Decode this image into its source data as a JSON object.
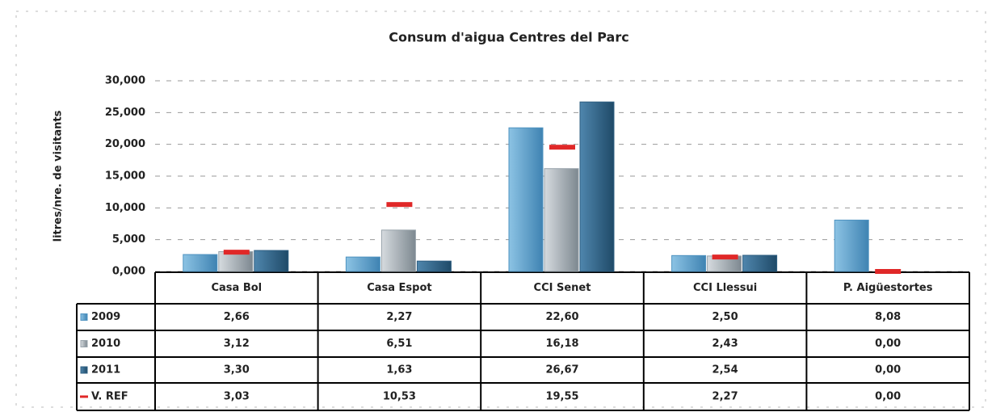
{
  "chart_data": {
    "type": "bar",
    "title": "Consum d'aigua Centres del Parc",
    "y_label": "litres/nre. de visitants",
    "categories": [
      "Casa Bol",
      "Casa Espot",
      "CCI Senet",
      "CCI Llessui",
      "P. Aigüestortes"
    ],
    "series": [
      {
        "name": "2009",
        "color": "#4f93c0",
        "type": "bar",
        "values": [
          2.66,
          2.27,
          22.6,
          2.5,
          8.08
        ],
        "value_labels": [
          "2,66",
          "2,27",
          "22,60",
          "2,50",
          "8,08"
        ]
      },
      {
        "name": "2010",
        "color": "#98a3ab",
        "type": "bar",
        "values": [
          3.12,
          6.51,
          16.18,
          2.43,
          0
        ],
        "value_labels": [
          "3,12",
          "6,51",
          "16,18",
          "2,43",
          "0,00"
        ]
      },
      {
        "name": "2011",
        "color": "#2f5f82",
        "type": "bar",
        "values": [
          3.3,
          1.63,
          26.67,
          2.54,
          0
        ],
        "value_labels": [
          "3,30",
          "1,63",
          "26,67",
          "2,54",
          "0,00"
        ]
      },
      {
        "name": "V. REF",
        "color": "#e02828",
        "type": "line",
        "values": [
          3.03,
          10.53,
          19.55,
          2.27,
          0
        ],
        "value_labels": [
          "3,03",
          "10,53",
          "19,55",
          "2,27",
          "0,00"
        ]
      }
    ],
    "ylim": [
      0,
      30
    ],
    "yticks": [
      {
        "value": 0,
        "label": "0,000"
      },
      {
        "value": 5,
        "label": "5,000"
      },
      {
        "value": 10,
        "label": "10,000"
      },
      {
        "value": 15,
        "label": "15,000"
      },
      {
        "value": 20,
        "label": "20,000"
      },
      {
        "value": 25,
        "label": "25,000"
      },
      {
        "value": 30,
        "label": "30,000"
      }
    ],
    "grid": true
  }
}
